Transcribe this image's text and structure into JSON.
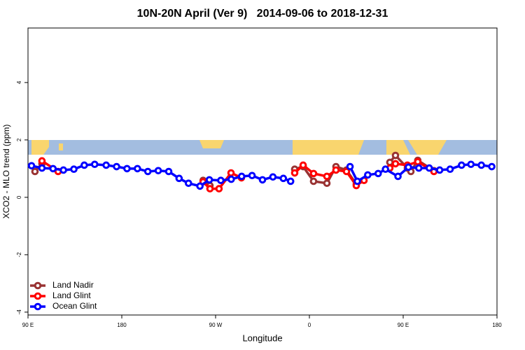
{
  "chart_data": {
    "type": "line",
    "title": "10N-20N April (Ver 9)   2014-09-06 to 2018-12-31",
    "x_label": "Longitude",
    "y_label": "XCO2 - MLO trend (ppm)",
    "xlim": [
      90,
      540
    ],
    "xticks": [
      {
        "value": 90,
        "label": "90 E"
      },
      {
        "value": 180,
        "label": "180"
      },
      {
        "value": 270,
        "label": "90 W"
      },
      {
        "value": 360,
        "label": "0"
      },
      {
        "value": 450,
        "label": "90 E"
      },
      {
        "value": 540,
        "label": "180"
      }
    ],
    "ylim": [
      -4.1,
      5.9
    ],
    "yticks": [
      -4,
      -2,
      0,
      2,
      4
    ],
    "legend": "bottom-left",
    "series": [
      {
        "name": "Land Nadir",
        "color": "#993333",
        "x": [
          96.7,
          103.4,
          200,
          258,
          264.6,
          370,
          345.9,
          354,
          364,
          376.8,
          385.5,
          395.6,
          405,
          420,
          437.2,
          442.6,
          454,
          457.4,
          464,
          479.5
        ],
        "values": [
          0.9,
          1.17,
          null,
          0.59,
          0.41,
          null,
          0.98,
          1.07,
          0.56,
          0.49,
          1.07,
          0.95,
          0.46,
          null,
          1.22,
          1.46,
          1.02,
          0.9,
          1.29,
          0.93
        ]
      },
      {
        "name": "Land Glint",
        "color": "#ff0000",
        "x": [
          103.4,
          118.9,
          200,
          258,
          264.6,
          273.3,
          284.8,
          294.8,
          370,
          345.9,
          354,
          364,
          376.8,
          385.5,
          395.6,
          405,
          412.4,
          420,
          437.2,
          442.6,
          454,
          464,
          479.5
        ],
        "values": [
          1.27,
          0.9,
          null,
          0.54,
          0.3,
          0.3,
          0.85,
          0.68,
          null,
          0.85,
          1.12,
          0.83,
          0.73,
          0.95,
          0.9,
          0.41,
          0.59,
          null,
          1.02,
          1.17,
          1.12,
          1.24,
          0.9
        ]
      },
      {
        "name": "Ocean Glint",
        "color": "#0000ff",
        "x": [
          93.4,
          103.4,
          114,
          124,
          134,
          144,
          154,
          165,
          175,
          185,
          195,
          205,
          215,
          225,
          235,
          244,
          255,
          264,
          275,
          285,
          295,
          305,
          315,
          325,
          335,
          342,
          370,
          399,
          406,
          416,
          426,
          433,
          445,
          455,
          465,
          475,
          485,
          495,
          506,
          515,
          525,
          535
        ],
        "values": [
          1.1,
          1.02,
          1.0,
          0.95,
          0.98,
          1.12,
          1.15,
          1.12,
          1.07,
          1.0,
          1.0,
          0.9,
          0.93,
          0.9,
          0.66,
          0.49,
          0.39,
          0.61,
          0.59,
          0.63,
          0.73,
          0.76,
          0.61,
          0.71,
          0.66,
          0.56,
          null,
          1.07,
          0.56,
          0.78,
          0.83,
          0.98,
          0.73,
          1.05,
          1.02,
          1.02,
          0.95,
          0.98,
          1.12,
          1.15,
          1.12,
          1.07
        ]
      }
    ]
  }
}
